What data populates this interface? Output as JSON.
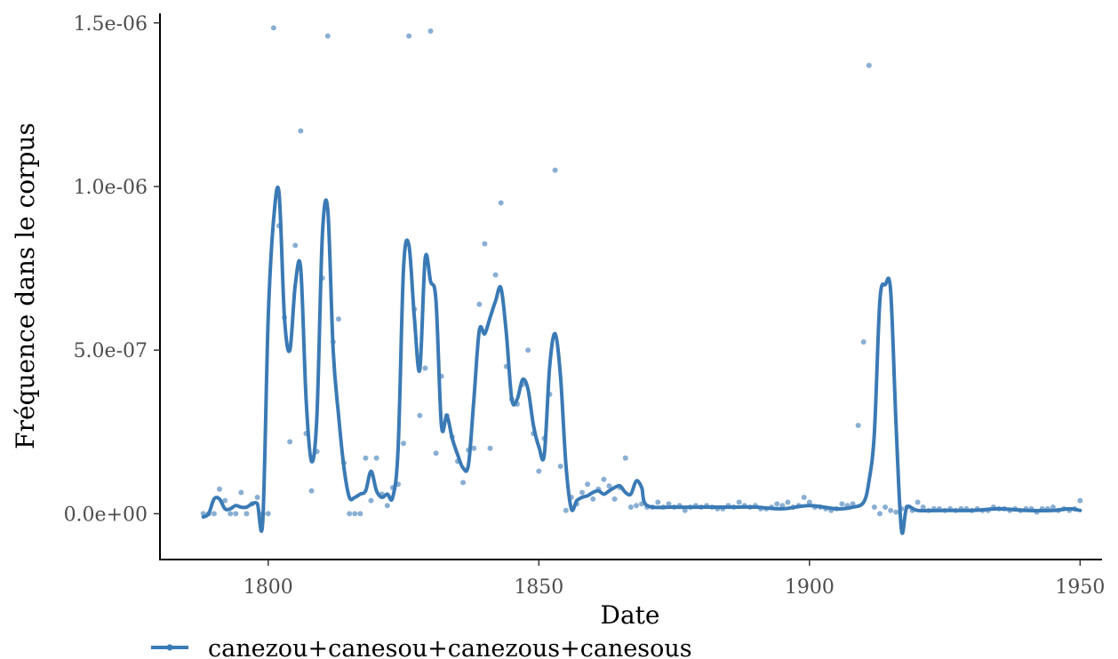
{
  "chart_data": {
    "type": "line",
    "xlabel": "Date",
    "ylabel": "Fréquence dans le corpus",
    "xlim": [
      1780,
      1957
    ],
    "ylim": [
      -1.4e-07,
      1.57e-06
    ],
    "x_ticks": [
      {
        "value": 1800,
        "label": "1800"
      },
      {
        "value": 1850,
        "label": "1850"
      },
      {
        "value": 1900,
        "label": "1900"
      },
      {
        "value": 1950,
        "label": "1950"
      }
    ],
    "y_ticks": [
      {
        "value": 0,
        "label": "0.0e+00"
      },
      {
        "value": 5e-07,
        "label": "5.0e-07"
      },
      {
        "value": 1e-06,
        "label": "1.0e-06"
      },
      {
        "value": 1.5e-06,
        "label": "1.5e-06"
      }
    ],
    "grid": false,
    "legend_position": "bottom",
    "series": [
      {
        "name": "canezou+canesou+canezous+canesous",
        "color": "#3a7ab5",
        "points_x": [
          1788,
          1789,
          1790,
          1791,
          1792,
          1793,
          1794,
          1795,
          1796,
          1797,
          1798,
          1799,
          1800,
          1801,
          1802,
          1803,
          1804,
          1805,
          1806,
          1807,
          1808,
          1809,
          1810,
          1811,
          1812,
          1813,
          1814,
          1815,
          1816,
          1817,
          1818,
          1819,
          1820,
          1821,
          1822,
          1823,
          1824,
          1825,
          1826,
          1827,
          1828,
          1829,
          1830,
          1831,
          1832,
          1833,
          1834,
          1835,
          1836,
          1837,
          1838,
          1839,
          1840,
          1841,
          1842,
          1843,
          1844,
          1845,
          1846,
          1847,
          1848,
          1849,
          1850,
          1851,
          1852,
          1853,
          1854,
          1855,
          1856,
          1857,
          1858,
          1859,
          1860,
          1861,
          1862,
          1863,
          1864,
          1865,
          1866,
          1867,
          1868,
          1869,
          1870,
          1871,
          1872,
          1873,
          1874,
          1875,
          1876,
          1877,
          1878,
          1879,
          1880,
          1881,
          1882,
          1883,
          1884,
          1885,
          1886,
          1887,
          1888,
          1889,
          1890,
          1891,
          1892,
          1893,
          1894,
          1895,
          1896,
          1897,
          1898,
          1899,
          1900,
          1901,
          1902,
          1903,
          1904,
          1905,
          1906,
          1907,
          1908,
          1909,
          1910,
          1911,
          1912,
          1913,
          1914,
          1915,
          1916,
          1917,
          1918,
          1919,
          1920,
          1921,
          1922,
          1923,
          1924,
          1925,
          1926,
          1927,
          1928,
          1929,
          1930,
          1931,
          1932,
          1933,
          1934,
          1935,
          1936,
          1937,
          1938,
          1939,
          1940,
          1941,
          1942,
          1943,
          1944,
          1945,
          1946,
          1947,
          1948,
          1949,
          1950
        ],
        "points_y": [
          0.0,
          0.0,
          0.0,
          7.5e-08,
          4e-08,
          0.0,
          0.0,
          6.5e-08,
          0.0,
          3e-08,
          5e-08,
          0.0,
          0.0,
          1.485e-06,
          8.8e-07,
          6e-07,
          2.2e-07,
          8.2e-07,
          1.17e-06,
          2.45e-07,
          7e-08,
          1.9e-07,
          7.2e-07,
          1.46e-06,
          5.25e-07,
          5.95e-07,
          1.55e-07,
          0.0,
          0.0,
          0.0,
          1.7e-07,
          4e-08,
          1.7e-07,
          6e-08,
          2.5e-08,
          8e-08,
          9e-08,
          2.15e-07,
          1.46e-06,
          6.25e-07,
          3e-07,
          4.45e-07,
          1.475e-06,
          1.85e-07,
          4.2e-07,
          3e-07,
          2.35e-07,
          1.6e-07,
          9.5e-08,
          1.95e-07,
          2e-07,
          6.4e-07,
          8.25e-07,
          2e-07,
          7.3e-07,
          9.5e-07,
          4.5e-07,
          3.5e-07,
          3.35e-07,
          3.95e-07,
          5e-07,
          2.45e-07,
          1.3e-07,
          2.3e-07,
          3.65e-07,
          1.05e-06,
          1.45e-07,
          1e-08,
          5e-08,
          3e-08,
          6.5e-08,
          9e-08,
          4.5e-08,
          7.5e-08,
          1.05e-07,
          8.5e-08,
          4.5e-08,
          8e-08,
          1.7e-07,
          2e-08,
          2.5e-08,
          3e-08,
          2e-08,
          2e-08,
          3.5e-08,
          2e-08,
          3e-08,
          2e-08,
          2.5e-08,
          1e-08,
          2e-08,
          2.5e-08,
          2e-08,
          2.5e-08,
          2e-08,
          1.5e-08,
          1.5e-08,
          2.5e-08,
          2e-08,
          3.5e-08,
          2.5e-08,
          2e-08,
          2.5e-08,
          1.5e-08,
          1.5e-08,
          2e-08,
          3e-08,
          2.5e-08,
          3.5e-08,
          2e-08,
          2.5e-08,
          5e-08,
          3.5e-08,
          2e-08,
          2e-08,
          1.5e-08,
          1e-08,
          1.5e-08,
          3e-08,
          2.5e-08,
          3e-08,
          2.7e-07,
          5.25e-07,
          1.37e-06,
          2e-08,
          0.0,
          2e-08,
          1e-08,
          5e-09,
          1.5e-08,
          2e-08,
          1e-08,
          3.5e-08,
          2e-08,
          1e-08,
          1.5e-08,
          1.5e-08,
          1e-08,
          1.5e-08,
          1e-08,
          1.5e-08,
          1.5e-08,
          1e-08,
          1.5e-08,
          1e-08,
          1e-08,
          2e-08,
          1.5e-08,
          1.5e-08,
          1e-08,
          1.5e-08,
          1e-08,
          1.5e-08,
          1.5e-08,
          5e-09,
          1.5e-08,
          1.5e-08,
          2e-08,
          1e-08,
          1.5e-08,
          1e-08,
          1.5e-08,
          4e-08,
          2e-08,
          1e-08
        ],
        "smooth_x": [
          1788,
          1789,
          1790,
          1791,
          1792,
          1793,
          1794,
          1795,
          1796,
          1797,
          1798,
          1799,
          1800,
          1801,
          1802,
          1803,
          1804,
          1805,
          1806,
          1807,
          1808,
          1809,
          1810,
          1811,
          1812,
          1813,
          1814,
          1815,
          1816,
          1817,
          1818,
          1819,
          1820,
          1821,
          1822,
          1823,
          1824,
          1825,
          1826,
          1827,
          1828,
          1829,
          1830,
          1831,
          1832,
          1833,
          1834,
          1835,
          1836,
          1837,
          1838,
          1839,
          1840,
          1841,
          1842,
          1843,
          1844,
          1845,
          1846,
          1847,
          1848,
          1849,
          1850,
          1851,
          1852,
          1853,
          1854,
          1855,
          1856,
          1857,
          1858,
          1859,
          1860,
          1861,
          1862,
          1863,
          1864,
          1865,
          1866,
          1867,
          1868,
          1869,
          1870,
          1875,
          1880,
          1885,
          1890,
          1895,
          1900,
          1905,
          1908,
          1910,
          1911,
          1912,
          1913,
          1914,
          1915,
          1916,
          1917,
          1918,
          1920,
          1925,
          1930,
          1935,
          1940,
          1945,
          1948,
          1950
        ],
        "smooth_y": [
          -1e-08,
          0.0,
          4.5e-08,
          4.5e-08,
          1.5e-08,
          1.5e-08,
          2.5e-08,
          2e-08,
          2e-08,
          3e-08,
          3e-08,
          -2e-08,
          6e-07,
          9e-07,
          9.8e-07,
          6e-07,
          5e-07,
          7e-07,
          7.5e-07,
          3.5e-07,
          1.6e-07,
          3e-07,
          8.5e-07,
          9.3e-07,
          5e-07,
          3e-07,
          1.4e-07,
          5e-08,
          5e-08,
          6e-08,
          7e-08,
          1.3e-07,
          7e-08,
          5e-08,
          6e-08,
          5e-08,
          2e-07,
          7.5e-07,
          8.2e-07,
          6e-07,
          4.4e-07,
          7.8e-07,
          7.1e-07,
          6.5e-07,
          2.7e-07,
          3e-07,
          2.3e-07,
          1.8e-07,
          1.4e-07,
          1.5e-07,
          3.5e-07,
          5.6e-07,
          5.5e-07,
          6e-07,
          6.5e-07,
          6.9e-07,
          5.5e-07,
          3.5e-07,
          3.5e-07,
          4.1e-07,
          3.8e-07,
          2.7e-07,
          2.05e-07,
          1.8e-07,
          4.5e-07,
          5.5e-07,
          4.2e-07,
          1.5e-07,
          1.5e-08,
          4e-08,
          5e-08,
          5.5e-08,
          6.5e-08,
          7e-08,
          6e-08,
          7e-08,
          8e-08,
          8.5e-08,
          6.5e-08,
          6e-08,
          1e-07,
          8e-08,
          2.5e-08,
          2e-08,
          2e-08,
          2e-08,
          2e-08,
          1.5e-08,
          2.5e-08,
          1.5e-08,
          2e-08,
          3.5e-08,
          1e-07,
          2.5e-07,
          6.5e-07,
          7e-07,
          6.8e-07,
          2.7e-07,
          -5e-08,
          2e-08,
          1e-08,
          1e-08,
          1e-08,
          1.5e-08,
          1e-08,
          1e-08,
          1.5e-08,
          1e-08
        ]
      }
    ]
  }
}
